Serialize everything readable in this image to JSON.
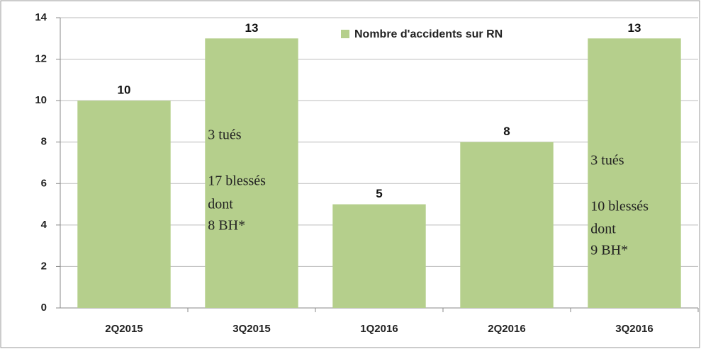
{
  "chart_data": {
    "type": "bar",
    "categories": [
      "2Q2015",
      "3Q2015",
      "1Q2016",
      "2Q2016",
      "3Q2016"
    ],
    "series": [
      {
        "name": "Nombre d'accidents sur RN",
        "color": "#b5cf8c",
        "values": [
          10,
          13,
          5,
          8,
          13
        ]
      }
    ],
    "ylim": [
      0,
      14
    ],
    "yticks": [
      0,
      2,
      4,
      6,
      8,
      10,
      12,
      14
    ],
    "grid": true,
    "annotations": [
      [
        "3 tués",
        "17 blessés",
        "dont",
        "8 BH*"
      ],
      [
        "3 tués",
        "10 blessés",
        "dont",
        "9 BH*"
      ]
    ]
  }
}
